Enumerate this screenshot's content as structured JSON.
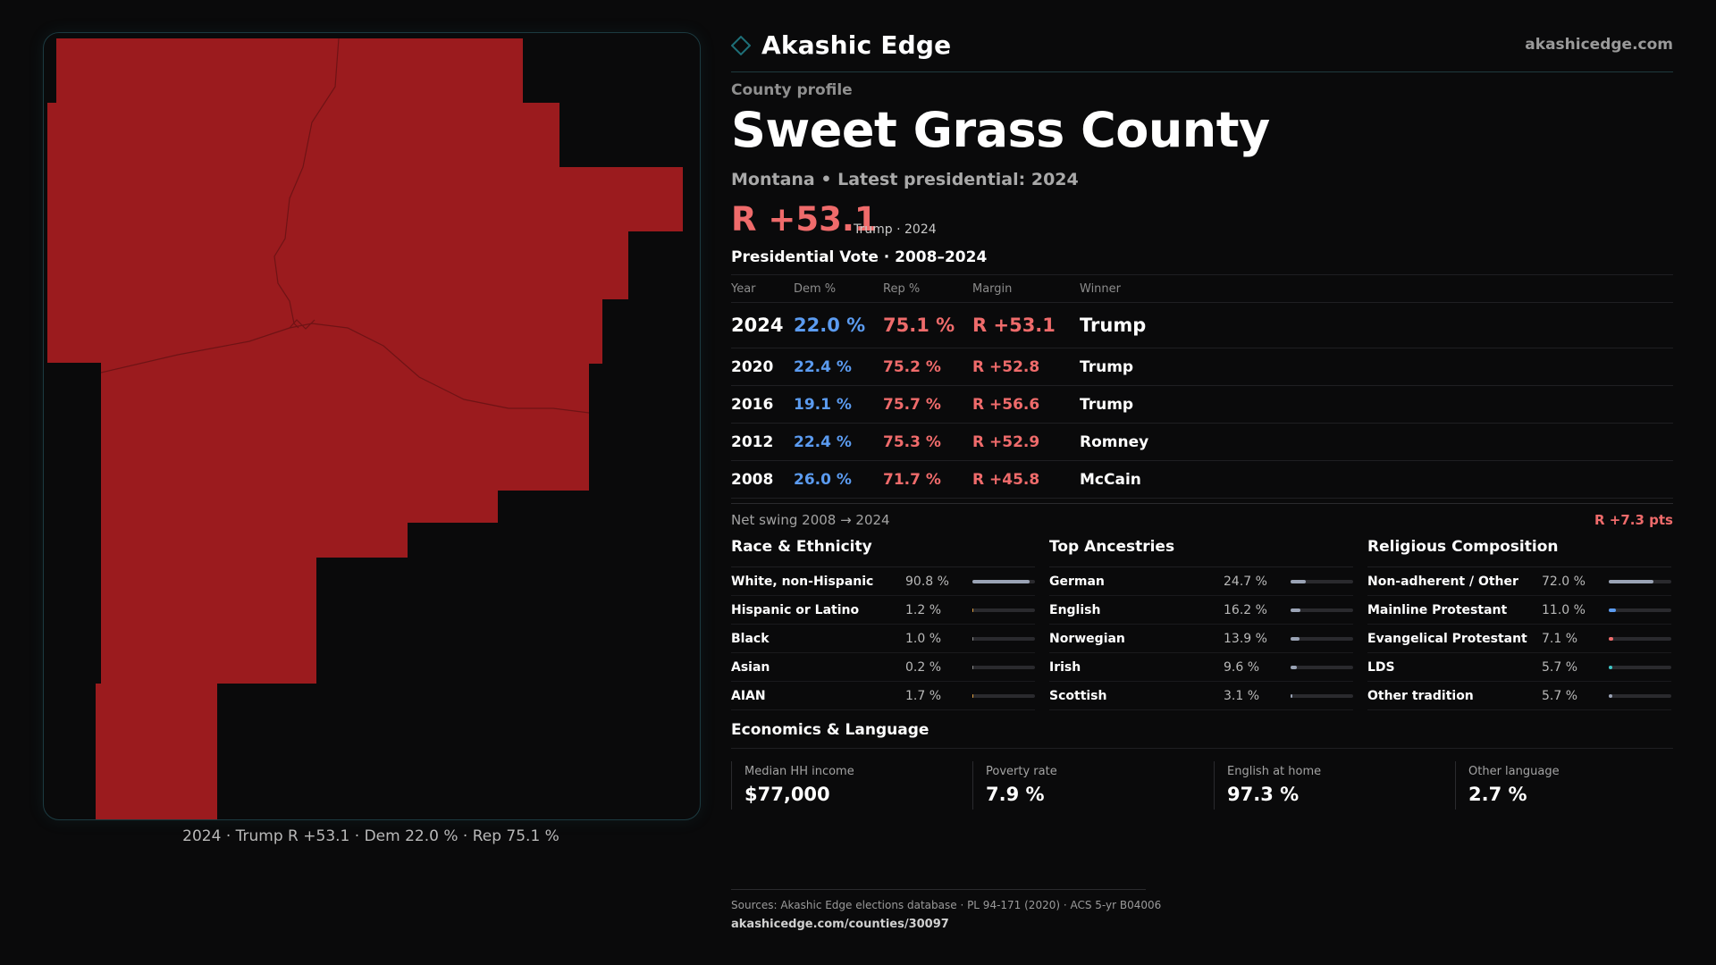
{
  "brand": {
    "name": "Akashic Edge",
    "site": "akashicedge.com",
    "accent": "#1e6f78"
  },
  "colors": {
    "rep": "#ef6b6b",
    "dem": "#5b9bf0",
    "map_fill": "#9b1b1e"
  },
  "profile": {
    "eyebrow": "County profile",
    "title": "Sweet Grass County",
    "subtitle": "Montana • Latest presidential: 2024",
    "margin": "R +53.1",
    "margin_sub": "Trump · 2024"
  },
  "map": {
    "caption": "2024 · Trump R +53.1 · Dem 22.0 % · Rep 75.1 %"
  },
  "vote": {
    "title": "Presidential Vote · 2008–2024",
    "headers": {
      "year": "Year",
      "dem": "Dem %",
      "rep": "Rep %",
      "margin": "Margin",
      "winner": "Winner"
    },
    "rows": [
      {
        "year": "2024",
        "dem": "22.0 %",
        "rep": "75.1 %",
        "margin": "R +53.1",
        "winner": "Trump"
      },
      {
        "year": "2020",
        "dem": "22.4 %",
        "rep": "75.2 %",
        "margin": "R +52.8",
        "winner": "Trump"
      },
      {
        "year": "2016",
        "dem": "19.1 %",
        "rep": "75.7 %",
        "margin": "R +56.6",
        "winner": "Trump"
      },
      {
        "year": "2012",
        "dem": "22.4 %",
        "rep": "75.3 %",
        "margin": "R +52.9",
        "winner": "Romney"
      },
      {
        "year": "2008",
        "dem": "26.0 %",
        "rep": "71.7 %",
        "margin": "R +45.8",
        "winner": "McCain"
      }
    ]
  },
  "swing": {
    "label": "Net swing 2008 → 2024",
    "value": "R +7.3 pts"
  },
  "demographics": {
    "race": {
      "title": "Race & Ethnicity",
      "items": [
        {
          "label": "White, non-Hispanic",
          "pct": "90.8 %",
          "value": 90.8,
          "color": "#9aa3b5"
        },
        {
          "label": "Hispanic or Latino",
          "pct": "1.2 %",
          "value": 1.2,
          "color": "#e0a040"
        },
        {
          "label": "Black",
          "pct": "1.0 %",
          "value": 1.0,
          "color": "#8c8c8c"
        },
        {
          "label": "Asian",
          "pct": "0.2 %",
          "value": 0.2,
          "color": "#8c8c8c"
        },
        {
          "label": "AIAN",
          "pct": "1.7 %",
          "value": 1.7,
          "color": "#e0a040"
        }
      ]
    },
    "ancestry": {
      "title": "Top Ancestries",
      "items": [
        {
          "label": "German",
          "pct": "24.7 %",
          "value": 24.7,
          "color": "#9aa3b5"
        },
        {
          "label": "English",
          "pct": "16.2 %",
          "value": 16.2,
          "color": "#9aa3b5"
        },
        {
          "label": "Norwegian",
          "pct": "13.9 %",
          "value": 13.9,
          "color": "#9aa3b5"
        },
        {
          "label": "Irish",
          "pct": "9.6 %",
          "value": 9.6,
          "color": "#9aa3b5"
        },
        {
          "label": "Scottish",
          "pct": "3.1 %",
          "value": 3.1,
          "color": "#9aa3b5"
        }
      ]
    },
    "religion": {
      "title": "Religious Composition",
      "items": [
        {
          "label": "Non-adherent / Other",
          "pct": "72.0 %",
          "value": 72.0,
          "color": "#9aa3b5"
        },
        {
          "label": "Mainline Protestant",
          "pct": "11.0 %",
          "value": 11.0,
          "color": "#5b9bf0"
        },
        {
          "label": "Evangelical Protestant",
          "pct": "7.1 %",
          "value": 7.1,
          "color": "#ef6b6b"
        },
        {
          "label": "LDS",
          "pct": "5.7 %",
          "value": 5.7,
          "color": "#3ec7c7"
        },
        {
          "label": "Other tradition",
          "pct": "5.7 %",
          "value": 5.7,
          "color": "#9aa3b5"
        }
      ]
    }
  },
  "economics": {
    "title": "Economics & Language",
    "cards": [
      {
        "label": "Median HH income",
        "value": "$77,000"
      },
      {
        "label": "Poverty rate",
        "value": "7.9 %"
      },
      {
        "label": "English at home",
        "value": "97.3 %"
      },
      {
        "label": "Other language",
        "value": "2.7 %"
      }
    ]
  },
  "footer": {
    "sources": "Sources: Akashic Edge elections database · PL 94-171 (2020) · ACS 5-yr B04006",
    "url": "akashicedge.com/counties/30097"
  }
}
